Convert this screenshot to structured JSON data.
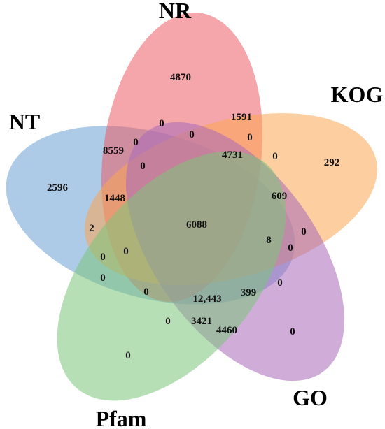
{
  "venn": {
    "sets": [
      {
        "key": "nt",
        "label": "NT",
        "color": "#6a9fd4"
      },
      {
        "key": "nr",
        "label": "NR",
        "color": "#eb5c66"
      },
      {
        "key": "kog",
        "label": "KOG",
        "color": "#fca552"
      },
      {
        "key": "go",
        "label": "GO",
        "color": "#a96ab9"
      },
      {
        "key": "pfam",
        "label": "Pfam",
        "color": "#7cc47a"
      }
    ],
    "counts": {
      "nr_only": "4870",
      "kog_only": "292",
      "nt_only": "2596",
      "pfam_only": "0",
      "go_only": "0",
      "nr_go_top": "0",
      "nr_mid": "0",
      "nr_kog": "1591",
      "nr_kog_small": "0",
      "nt_nr": "8559",
      "nt_nr_small": "0",
      "nt_nr_inner": "0",
      "nr_kog_core": "4731",
      "kog_go": "0",
      "nt_left_1448": "1448",
      "kog_609": "609",
      "all": "6088",
      "nt_left_2": "2",
      "kog_go_right": "0",
      "r8": "8",
      "go_right": "0",
      "nt_pfam_1": "0",
      "nt_pfam_2": "0",
      "pfam_inner": "0",
      "nt_pfam_3": "0",
      "go_lower": "0",
      "center_12443": "12,443",
      "r399": "399",
      "pfam_go_0": "0",
      "pfam_nr": "0",
      "r3421": "3421",
      "r4460": "4460"
    }
  }
}
